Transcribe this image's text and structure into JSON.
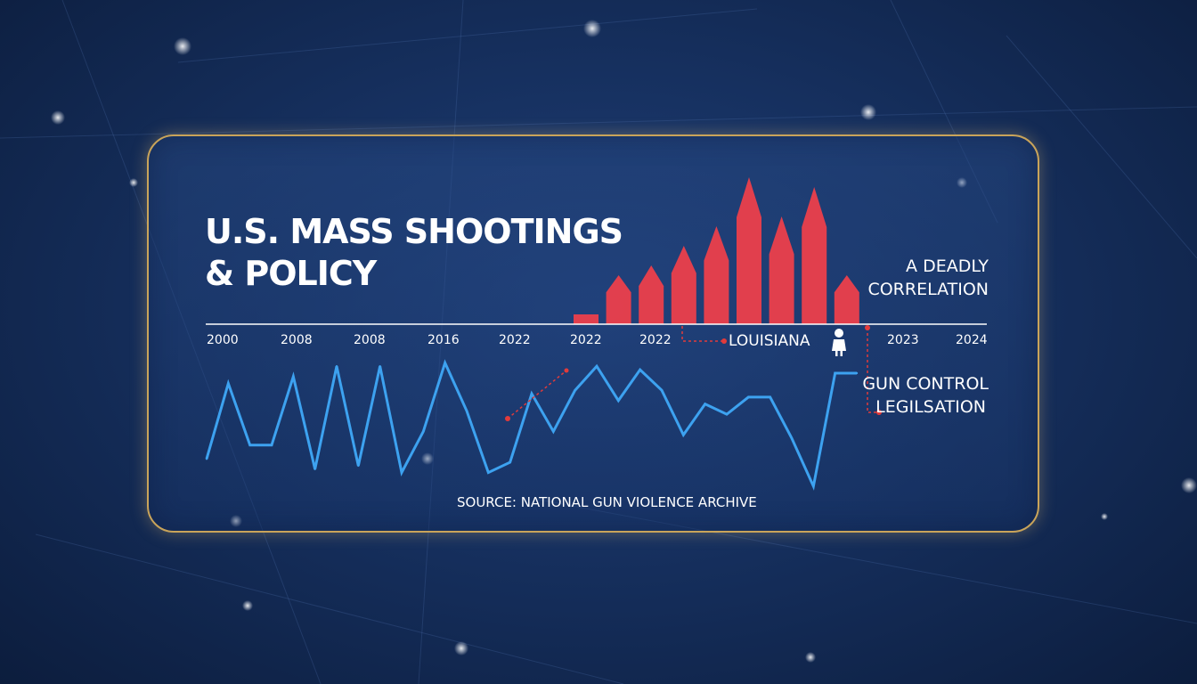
{
  "title_lines": [
    "U.S. MASS SHOOTINGS",
    "& POLICY"
  ],
  "side_labels": {
    "correlation": [
      "A DEADLY",
      "CORRELATION"
    ],
    "legislation": [
      "GUN CONTROL",
      "LEGILSATION"
    ]
  },
  "source": "SOURCE: NATIONAL GUN VIOLENCE ARCHIVE",
  "annotation": "LOUISIANA",
  "colors": {
    "bar": "#f0404a",
    "line": "#3da2f0",
    "frame": "#c9a45a",
    "annotation_dot": "#e23b3b"
  },
  "chart_data": {
    "type": "bar+line",
    "x_tick_labels": [
      "2000",
      "2008",
      "2008",
      "2016",
      "2022",
      "2022",
      "2022",
      "2023",
      "2024"
    ],
    "bars": {
      "values": [
        1,
        5,
        6,
        8,
        10,
        15,
        11,
        14,
        5
      ],
      "ylim": [
        0,
        16
      ]
    },
    "line": {
      "values": [
        8,
        30,
        12,
        12,
        32,
        5,
        35,
        6,
        35,
        4,
        16,
        36,
        22,
        4,
        7,
        27,
        16,
        28,
        35,
        25,
        34,
        28,
        15,
        24,
        21,
        26,
        26,
        14,
        0,
        33,
        33
      ],
      "ylim": [
        0,
        40
      ]
    },
    "grid": false,
    "legend": "none"
  }
}
